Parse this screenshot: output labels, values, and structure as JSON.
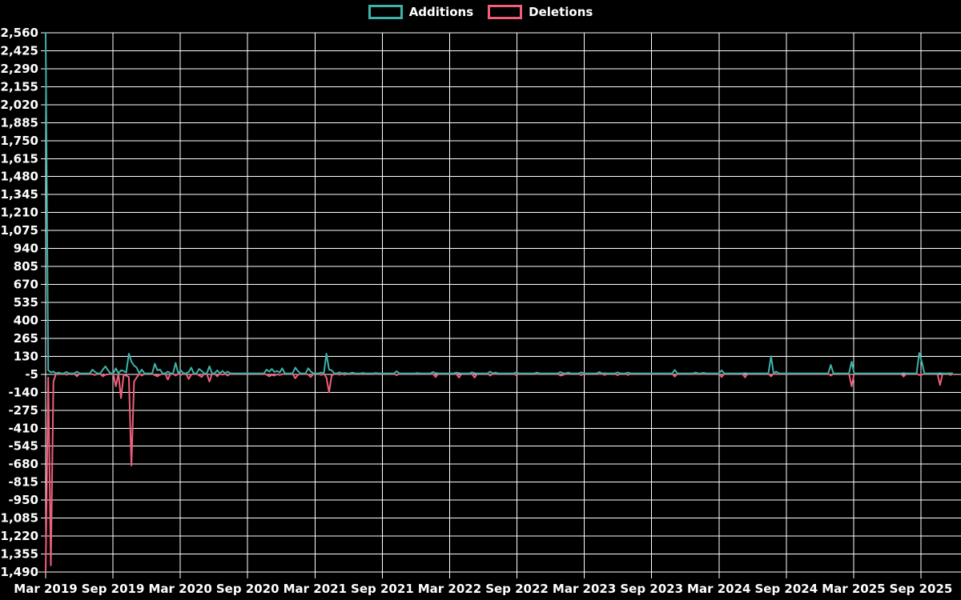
{
  "colors": {
    "background": "#000000",
    "grid": "#ffffff",
    "axis": "#ffffff",
    "text": "#ffffff",
    "additions": "#3db3a8",
    "deletions": "#f05f7a"
  },
  "chart_data": {
    "type": "line",
    "title": "",
    "legend_position": "top-center",
    "grid": true,
    "series": [
      {
        "name": "Additions",
        "color": "#3db3a8"
      },
      {
        "name": "Deletions",
        "color": "#f05f7a"
      }
    ],
    "x_axis": {
      "unit": "weeks",
      "tick_labels": [
        "Mar 2019",
        "Sep 2019",
        "Mar 2020",
        "Sep 2020",
        "Mar 2021",
        "Sep 2021",
        "Mar 2022",
        "Sep 2022",
        "Mar 2023",
        "Sep 2023",
        "Mar 2024",
        "Sep 2024",
        "Mar 2025",
        "Sep 2025"
      ]
    },
    "y_axis": {
      "min": -1490,
      "max": 2560,
      "step": 135
    },
    "weeks": 350,
    "default": {
      "additions": 2,
      "deletions": -1
    },
    "points_format": [
      "week_index",
      "additions",
      "deletions"
    ],
    "points": [
      [
        0,
        2560,
        -1490
      ],
      [
        1,
        25,
        -30
      ],
      [
        2,
        10,
        -1440
      ],
      [
        3,
        15,
        -60
      ],
      [
        5,
        8,
        -5
      ],
      [
        8,
        12,
        -8
      ],
      [
        12,
        15,
        -20
      ],
      [
        18,
        30,
        -5
      ],
      [
        19,
        12,
        -10
      ],
      [
        22,
        30,
        -20
      ],
      [
        23,
        55,
        -8
      ],
      [
        24,
        25,
        -5
      ],
      [
        27,
        40,
        -95
      ],
      [
        29,
        25,
        -185
      ],
      [
        30,
        20,
        -10
      ],
      [
        31,
        8,
        -15
      ],
      [
        32,
        150,
        -25
      ],
      [
        33,
        90,
        -690
      ],
      [
        34,
        60,
        -60
      ],
      [
        35,
        45,
        -30
      ],
      [
        37,
        30,
        -15
      ],
      [
        42,
        75,
        -12
      ],
      [
        43,
        25,
        -20
      ],
      [
        44,
        30,
        -8
      ],
      [
        47,
        15,
        -45
      ],
      [
        50,
        80,
        -15
      ],
      [
        52,
        25,
        -10
      ],
      [
        55,
        12,
        -40
      ],
      [
        56,
        45,
        -8
      ],
      [
        59,
        35,
        -12
      ],
      [
        60,
        20,
        -25
      ],
      [
        63,
        55,
        -60
      ],
      [
        66,
        25,
        -20
      ],
      [
        68,
        20,
        -8
      ],
      [
        70,
        15,
        -15
      ],
      [
        85,
        30,
        -8
      ],
      [
        86,
        15,
        -20
      ],
      [
        87,
        35,
        -10
      ],
      [
        88,
        12,
        -15
      ],
      [
        89,
        20,
        -5
      ],
      [
        90,
        8,
        -10
      ],
      [
        91,
        40,
        -5
      ],
      [
        96,
        45,
        -35
      ],
      [
        97,
        20,
        -10
      ],
      [
        101,
        40,
        -8
      ],
      [
        102,
        15,
        -25
      ],
      [
        106,
        8,
        -10
      ],
      [
        108,
        150,
        -30
      ],
      [
        109,
        30,
        -140
      ],
      [
        110,
        25,
        -15
      ],
      [
        113,
        10,
        -8
      ],
      [
        115,
        5,
        -8
      ],
      [
        118,
        8,
        -3
      ],
      [
        122,
        5,
        -5
      ],
      [
        127,
        5,
        -3
      ],
      [
        135,
        18,
        -12
      ],
      [
        143,
        5,
        -5
      ],
      [
        149,
        12,
        -3
      ],
      [
        150,
        4,
        -25
      ],
      [
        158,
        8,
        -3
      ],
      [
        159,
        3,
        -30
      ],
      [
        164,
        10,
        -3
      ],
      [
        165,
        3,
        -30
      ],
      [
        171,
        15,
        -15
      ],
      [
        173,
        8,
        -3
      ],
      [
        181,
        10,
        -12
      ],
      [
        189,
        8,
        -3
      ],
      [
        198,
        12,
        -15
      ],
      [
        199,
        3,
        -10
      ],
      [
        201,
        8,
        -3
      ],
      [
        206,
        10,
        -12
      ],
      [
        213,
        12,
        -3
      ],
      [
        215,
        3,
        -10
      ],
      [
        220,
        10,
        -12
      ],
      [
        224,
        8,
        -10
      ],
      [
        242,
        28,
        -22
      ],
      [
        250,
        8,
        -3
      ],
      [
        253,
        6,
        -3
      ],
      [
        260,
        25,
        -25
      ],
      [
        269,
        4,
        -28
      ],
      [
        279,
        130,
        -20
      ],
      [
        281,
        15,
        -5
      ],
      [
        302,
        65,
        -15
      ],
      [
        310,
        90,
        -95
      ],
      [
        330,
        4,
        -22
      ],
      [
        336,
        155,
        -10
      ],
      [
        337,
        90,
        -8
      ],
      [
        344,
        3,
        -85
      ],
      [
        348,
        3,
        -10
      ]
    ]
  }
}
